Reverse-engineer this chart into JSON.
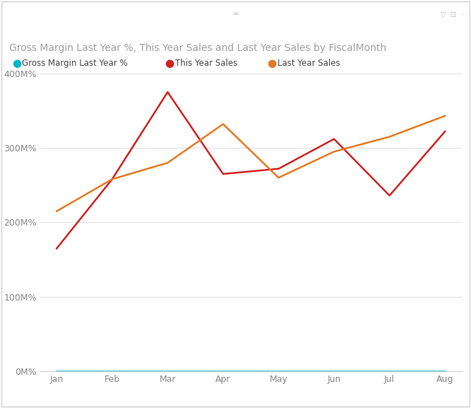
{
  "title": "Gross Margin Last Year %, This Year Sales and Last Year Sales by FiscalMonth",
  "title_color": "#a0a0a0",
  "title_fontsize": 10,
  "background_color": "#ffffff",
  "legend": [
    {
      "label": "Gross Margin Last Year %",
      "color": "#00b4c8"
    },
    {
      "label": "This Year Sales",
      "color": "#d42020"
    },
    {
      "label": "Last Year Sales",
      "color": "#e87820"
    }
  ],
  "months": [
    "Jan",
    "Feb",
    "Mar",
    "Apr",
    "May",
    "Jun",
    "Jul",
    "Aug"
  ],
  "this_year_sales": [
    165,
    258,
    375,
    265,
    272,
    312,
    236,
    322
  ],
  "last_year_sales": [
    215,
    258,
    280,
    332,
    260,
    295,
    315,
    343
  ],
  "gross_margin_last_year": [
    0,
    0,
    0,
    0,
    0,
    0,
    0,
    0
  ],
  "this_year_color": "#d42020",
  "last_year_color": "#e87820",
  "gross_margin_color": "#00b4c8",
  "ylim": [
    0,
    400
  ],
  "yticks": [
    0,
    100,
    200,
    300,
    400
  ],
  "ytick_labels": [
    "0M%",
    "100M%",
    "200M%",
    "300M%",
    "400M%"
  ],
  "grid_color": "#e0e0e0",
  "line_width": 1.8,
  "border_color": "#d0d0d0",
  "frame_color": "#d0d0d0",
  "tick_color": "#888888"
}
